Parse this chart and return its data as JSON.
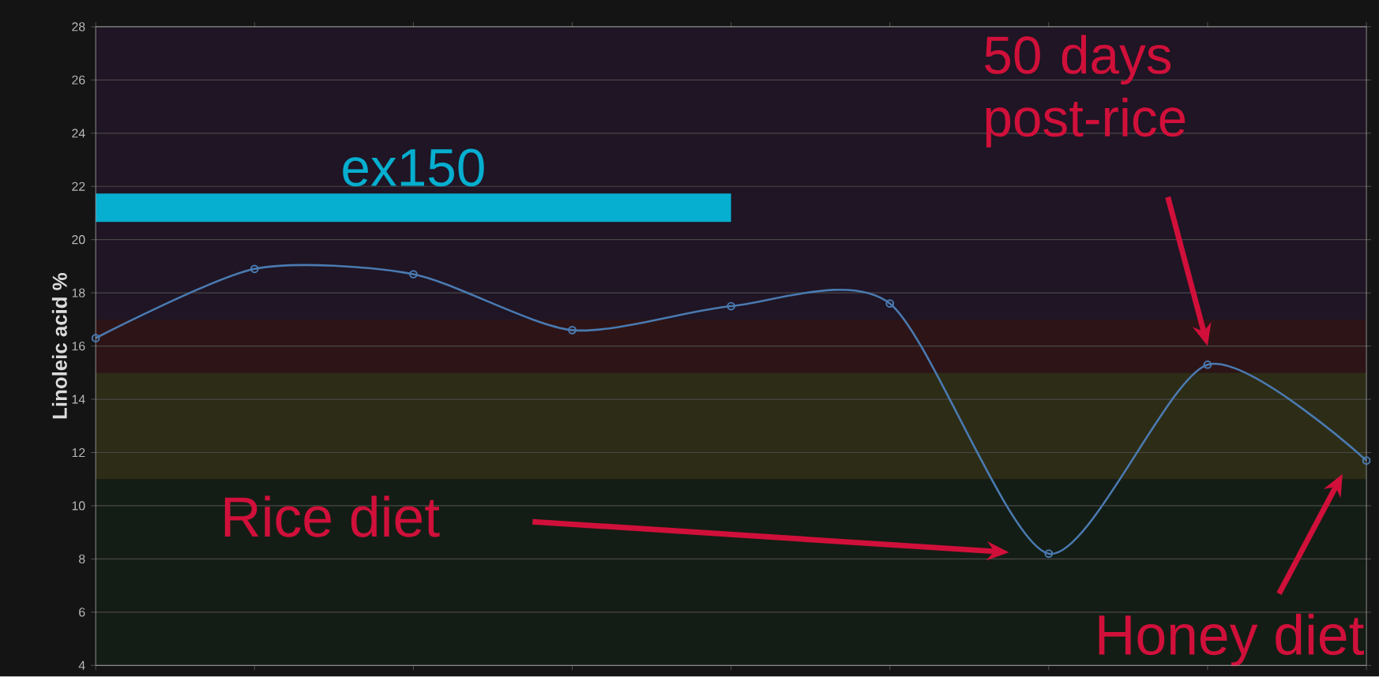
{
  "chart_data": {
    "type": "line",
    "ylabel": "Linoleic acid %",
    "categories": [
      null,
      null,
      null,
      null,
      null,
      null,
      null,
      null,
      null
    ],
    "series": [
      {
        "color": "#4a7ab0",
        "values": [
          16.3,
          18.9,
          18.7,
          16.6,
          17.5,
          17.6,
          8.2,
          15.3,
          11.7
        ]
      },
      {
        "name": "ex150",
        "color": "#06aecf",
        "marker": "none",
        "values": [
          21.2,
          21.2,
          21.2,
          21.2,
          21.2,
          null,
          null,
          null,
          null
        ]
      }
    ],
    "ylim": [
      4,
      28
    ],
    "yticks": [
      4,
      6,
      8,
      10,
      12,
      14,
      16,
      18,
      20,
      22,
      24,
      26,
      28
    ],
    "grid": "y",
    "marker": "circle",
    "line_style": "solid",
    "tick_labels": "y",
    "bands": [
      {
        "axis": "y",
        "from": 4,
        "to": 11,
        "color": "#141d15"
      },
      {
        "axis": "y",
        "from": 11,
        "to": 15,
        "color": "#2d2c17"
      },
      {
        "axis": "y",
        "from": 15,
        "to": 17,
        "color": "#2d1417"
      },
      {
        "axis": "y",
        "from": 17,
        "to": 28,
        "color": "#1f1524"
      }
    ],
    "annotations": [
      "Rice diet",
      "50 days post-rice",
      "Honey diet"
    ]
  }
}
